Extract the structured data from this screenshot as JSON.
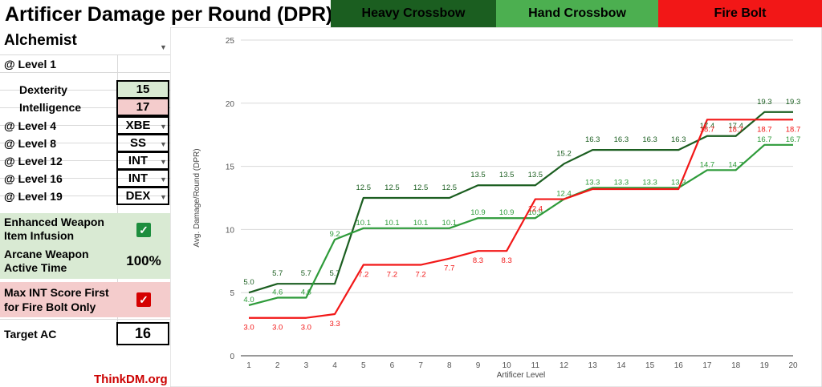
{
  "title": "Artificer Damage per Round (DPR)",
  "legend": [
    {
      "label": "Heavy Crossbow",
      "bg": "#1b5e20",
      "fg": "#000000"
    },
    {
      "label": "Hand Crossbow",
      "bg": "#4caf50",
      "fg": "#000000"
    },
    {
      "label": "Fire Bolt",
      "bg": "#f21717",
      "fg": "#000000"
    }
  ],
  "panel": {
    "subclass": "Alchemist",
    "level1_label": "@ Level 1",
    "dex_label": "Dexterity",
    "dex_value": "15",
    "int_label": "Intelligence",
    "int_value": "17",
    "level4_label": "@ Level 4",
    "level4_value": "XBE",
    "level8_label": "@ Level 8",
    "level8_value": "SS",
    "level12_label": "@ Level 12",
    "level12_value": "INT",
    "level16_label": "@ Level 16",
    "level16_value": "INT",
    "level19_label": "@ Level 19",
    "level19_value": "DEX",
    "infusion_label_1": "Enhanced Weapon",
    "infusion_label_2": "Item Infusion",
    "arcane_label_1": "Arcane Weapon",
    "arcane_label_2": "Active Time",
    "arcane_value": "100%",
    "maxint_label_1": "Max INT Score First",
    "maxint_label_2": "for Fire Bolt Only",
    "target_label": "Target AC",
    "target_value": "16",
    "credit": "ThinkDM.org",
    "colors": {
      "green_bg": "#d9ead3",
      "red_bg": "#f4cccc",
      "check_green": "#1e8e3e",
      "check_red": "#d50000",
      "credit": "#cc0000"
    }
  },
  "chart_data": {
    "type": "line",
    "title": "",
    "xlabel": "Artificer Level",
    "ylabel": "Avg. Damage/Round (DPR)",
    "x": [
      1,
      2,
      3,
      4,
      5,
      6,
      7,
      8,
      9,
      10,
      11,
      12,
      13,
      14,
      15,
      16,
      17,
      18,
      19,
      20
    ],
    "ylim": [
      0,
      25
    ],
    "yticks": [
      0,
      5,
      10,
      15,
      20,
      25
    ],
    "grid": true,
    "series": [
      {
        "name": "Heavy Crossbow",
        "color": "#1b5e20",
        "values": [
          5.0,
          5.7,
          5.7,
          5.7,
          12.5,
          12.5,
          12.5,
          12.5,
          13.5,
          13.5,
          13.5,
          15.2,
          16.3,
          16.3,
          16.3,
          16.3,
          17.4,
          17.4,
          19.3,
          19.3
        ],
        "labels": [
          "5.0",
          "5.7",
          "5.7",
          "5.7",
          "12.5",
          "12.5",
          "12.5",
          "12.5",
          "13.5",
          "13.5",
          "13.5",
          "15.2",
          "16.3",
          "16.3",
          "16.3",
          "16.3",
          "17.4",
          "17.4",
          "19.3",
          "19.3"
        ]
      },
      {
        "name": "Hand Crossbow",
        "color": "#2e9b3a",
        "values": [
          4.0,
          4.6,
          4.6,
          9.2,
          10.1,
          10.1,
          10.1,
          10.1,
          10.9,
          10.9,
          10.9,
          12.4,
          13.3,
          13.3,
          13.3,
          13.3,
          14.7,
          14.7,
          16.7,
          16.7
        ],
        "labels": [
          "4.0",
          "4.6",
          "4.6",
          "9.2",
          "10.1",
          "10.1",
          "10.1",
          "10.1",
          "10.9",
          "10.9",
          "10.9",
          "12.4",
          "13.3",
          "13.3",
          "13.3",
          "13.3",
          "14.7",
          "14.7",
          "16.7",
          "16.7"
        ]
      },
      {
        "name": "Fire Bolt",
        "color": "#f21717",
        "values": [
          3.0,
          3.0,
          3.0,
          3.3,
          7.2,
          7.2,
          7.2,
          7.7,
          8.3,
          8.3,
          12.4,
          12.4,
          13.2,
          13.2,
          13.2,
          13.2,
          18.7,
          18.7,
          18.7,
          18.7
        ],
        "labels": [
          "3.0",
          "3.0",
          "3.0",
          "3.3",
          "7.2",
          "7.2",
          "7.2",
          "7.7",
          "8.3",
          "8.3",
          "12.4",
          "",
          "",
          "",
          "",
          "",
          "18.7",
          "18.7",
          "18.7",
          "18.7"
        ]
      }
    ]
  }
}
